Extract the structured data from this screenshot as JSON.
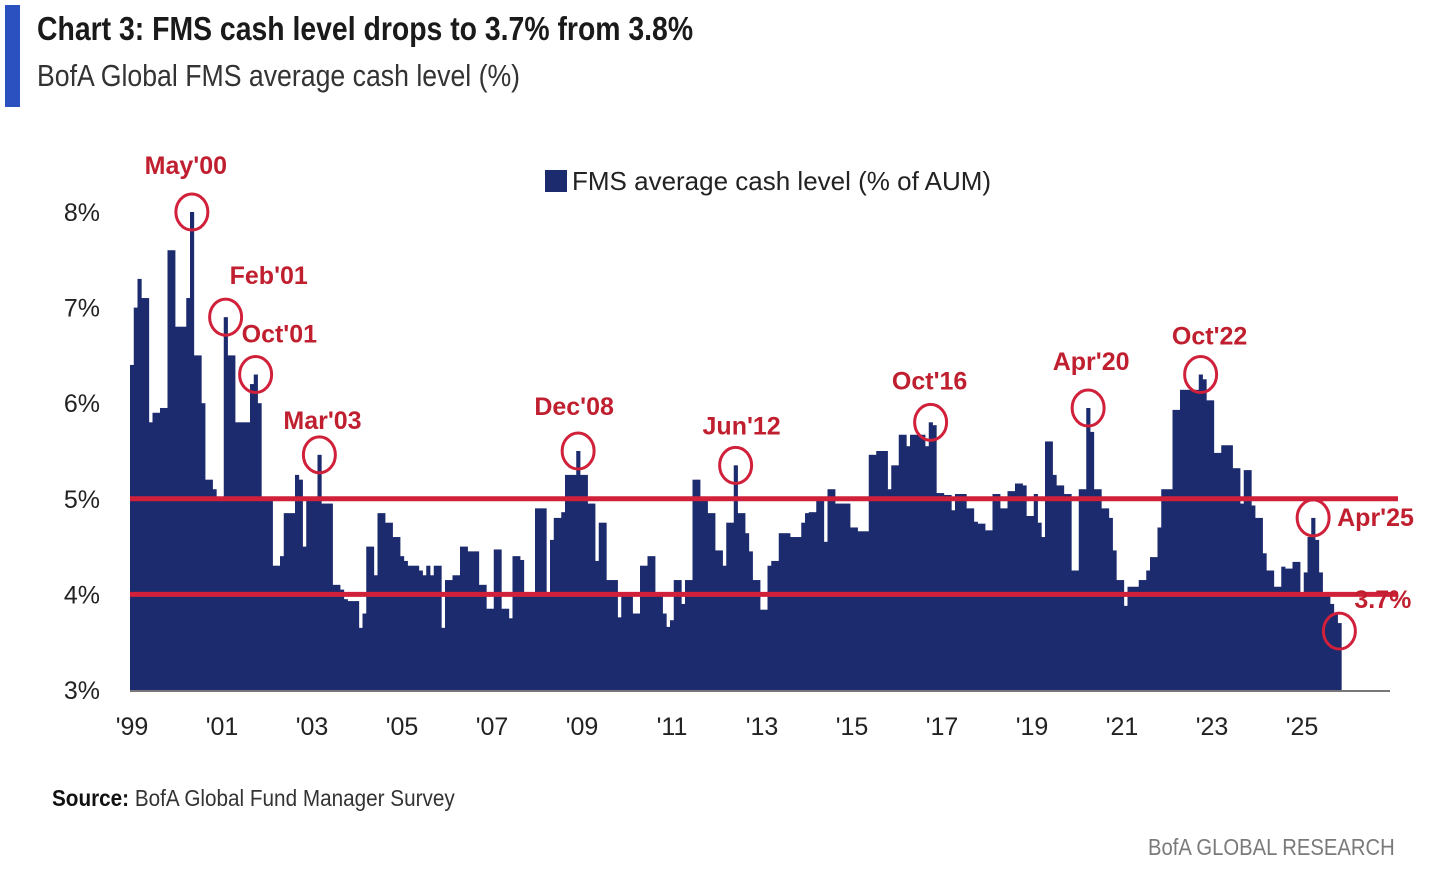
{
  "header": {
    "title": "Chart 3: FMS cash level drops to 3.7% from 3.8%",
    "subtitle": "BofA Global FMS average cash level (%)"
  },
  "footer": {
    "source_label": "Source:",
    "source_text": "BofA Global Fund Manager Survey",
    "brand": "BofA GLOBAL RESEARCH"
  },
  "colors": {
    "bars": "#1c2a6e",
    "reference_lines": "#d0203a",
    "annotations": "#c01f2f",
    "accent": "#2b50c0"
  },
  "chart_data": {
    "type": "bar",
    "title": "Chart 3: FMS cash level drops to 3.7% from 3.8%",
    "subtitle": "BofA Global FMS average cash level (%)",
    "frequency": "monthly",
    "x_start": "1999-01",
    "x_end": "2025-11",
    "xlabel": "",
    "ylabel": "",
    "ylim": [
      3,
      8
    ],
    "y_ticks": [
      "3%",
      "4%",
      "5%",
      "6%",
      "7%",
      "8%"
    ],
    "x_ticks": [
      "'99",
      "'01",
      "'03",
      "'05",
      "'07",
      "'09",
      "'11",
      "'13",
      "'15",
      "'17",
      "'19",
      "'21",
      "'23",
      "'25"
    ],
    "grid": false,
    "legend": {
      "position": "top-center",
      "entries": [
        "FMS average cash level (% of AUM)"
      ]
    },
    "reference_lines": [
      5.0,
      4.0
    ],
    "series": [
      {
        "name": "FMS average cash level (% of AUM)",
        "values": [
          6.4,
          7.0,
          7.3,
          7.1,
          7.1,
          5.8,
          5.9,
          5.9,
          5.95,
          5.95,
          7.6,
          7.6,
          6.8,
          6.8,
          6.8,
          7.1,
          8.0,
          6.5,
          6.5,
          6.0,
          5.2,
          5.2,
          5.1,
          5.0,
          5.0,
          6.9,
          6.5,
          6.5,
          5.8,
          5.8,
          5.8,
          5.8,
          6.2,
          6.3,
          6.0,
          5.0,
          5.0,
          5.0,
          4.3,
          4.3,
          4.4,
          4.85,
          4.85,
          4.85,
          5.25,
          5.2,
          4.5,
          5.0,
          5.0,
          5.0,
          5.46,
          4.95,
          4.95,
          4.95,
          4.1,
          4.1,
          4.05,
          3.95,
          3.93,
          3.93,
          3.93,
          3.65,
          3.8,
          4.5,
          4.5,
          4.2,
          4.85,
          4.85,
          4.75,
          4.75,
          4.6,
          4.6,
          4.4,
          4.35,
          4.3,
          4.3,
          4.3,
          4.25,
          4.2,
          4.3,
          4.2,
          4.3,
          4.3,
          3.65,
          4.15,
          4.15,
          4.2,
          4.2,
          4.5,
          4.5,
          4.45,
          4.45,
          4.45,
          4.1,
          4.1,
          3.85,
          3.85,
          4.47,
          4.47,
          3.85,
          3.85,
          3.75,
          4.4,
          4.4,
          4.36,
          4.02,
          4.02,
          4.02,
          4.9,
          4.9,
          4.9,
          4.0,
          4.57,
          4.8,
          4.8,
          4.86,
          5.25,
          5.25,
          5.25,
          5.5,
          5.25,
          5.25,
          4.95,
          4.95,
          4.35,
          4.75,
          4.75,
          4.15,
          4.15,
          4.15,
          3.76,
          4.0,
          4.0,
          4.0,
          3.8,
          3.8,
          4.3,
          4.3,
          4.4,
          4.4,
          3.98,
          3.98,
          3.8,
          3.66,
          3.73,
          4.15,
          4.15,
          3.9,
          4.15,
          4.15,
          5.2,
          5.2,
          5.0,
          5.0,
          4.85,
          4.85,
          4.46,
          4.46,
          4.3,
          4.75,
          4.75,
          5.35,
          4.85,
          4.85,
          4.64,
          4.45,
          4.15,
          4.15,
          3.84,
          3.84,
          4.3,
          4.35,
          4.35,
          4.64,
          4.64,
          4.64,
          4.6,
          4.6,
          4.6,
          4.75,
          4.85,
          4.86,
          4.86,
          4.98,
          4.98,
          4.55,
          5.1,
          5.1,
          4.95,
          4.95,
          4.95,
          4.95,
          4.7,
          4.7,
          4.66,
          4.66,
          4.66,
          5.46,
          5.46,
          5.5,
          5.5,
          5.5,
          5.1,
          5.35,
          5.35,
          5.67,
          5.67,
          5.55,
          5.67,
          5.67,
          5.67,
          5.67,
          5.55,
          5.8,
          5.77,
          5.06,
          5.06,
          5.04,
          5.04,
          4.88,
          5.05,
          5.05,
          5.05,
          4.9,
          4.9,
          4.76,
          4.74,
          4.74,
          4.67,
          4.67,
          5.05,
          5.05,
          4.9,
          4.9,
          5.08,
          5.08,
          5.16,
          5.16,
          5.14,
          4.82,
          4.82,
          5.05,
          4.75,
          4.6,
          5.6,
          5.6,
          5.25,
          5.14,
          5.14,
          5.05,
          5.05,
          4.25,
          4.25,
          5.1,
          5.1,
          5.95,
          5.7,
          5.1,
          5.1,
          4.9,
          4.9,
          4.8,
          4.46,
          4.15,
          4.15,
          3.88,
          4.08,
          4.08,
          4.08,
          4.15,
          4.15,
          4.25,
          4.39,
          4.39,
          4.7,
          5.1,
          5.1,
          5.1,
          5.93,
          5.93,
          6.14,
          6.14,
          6.14,
          6.14,
          6.14,
          6.3,
          6.25,
          6.03,
          6.03,
          5.48,
          5.48,
          5.56,
          5.56,
          5.56,
          5.32,
          5.32,
          4.95,
          5.3,
          5.3,
          4.93,
          4.8,
          4.8,
          4.43,
          4.25,
          4.25,
          4.08,
          4.08,
          4.29,
          4.27,
          4.27,
          4.34,
          4.34,
          4.0,
          4.23,
          4.6,
          4.8,
          4.57,
          4.23,
          3.99,
          3.99,
          3.9,
          3.8,
          3.7
        ]
      }
    ],
    "annotations": [
      {
        "label": "May'00",
        "date": "2000-05",
        "value": 8.0
      },
      {
        "label": "Feb'01",
        "date": "2001-02",
        "value": 6.9
      },
      {
        "label": "Oct'01",
        "date": "2001-10",
        "value": 6.3
      },
      {
        "label": "Mar'03",
        "date": "2003-03",
        "value": 5.46
      },
      {
        "label": "Dec'08",
        "date": "2008-12",
        "value": 5.5
      },
      {
        "label": "Jun'12",
        "date": "2012-06",
        "value": 5.35
      },
      {
        "label": "Oct'16",
        "date": "2016-10",
        "value": 5.8
      },
      {
        "label": "Apr'20",
        "date": "2020-04",
        "value": 5.95
      },
      {
        "label": "Oct'22",
        "date": "2022-10",
        "value": 6.3
      },
      {
        "label": "Apr'25",
        "date": "2025-04",
        "value": 4.8
      },
      {
        "label": "3.7%",
        "date": "2025-11",
        "value": 3.7
      }
    ]
  }
}
